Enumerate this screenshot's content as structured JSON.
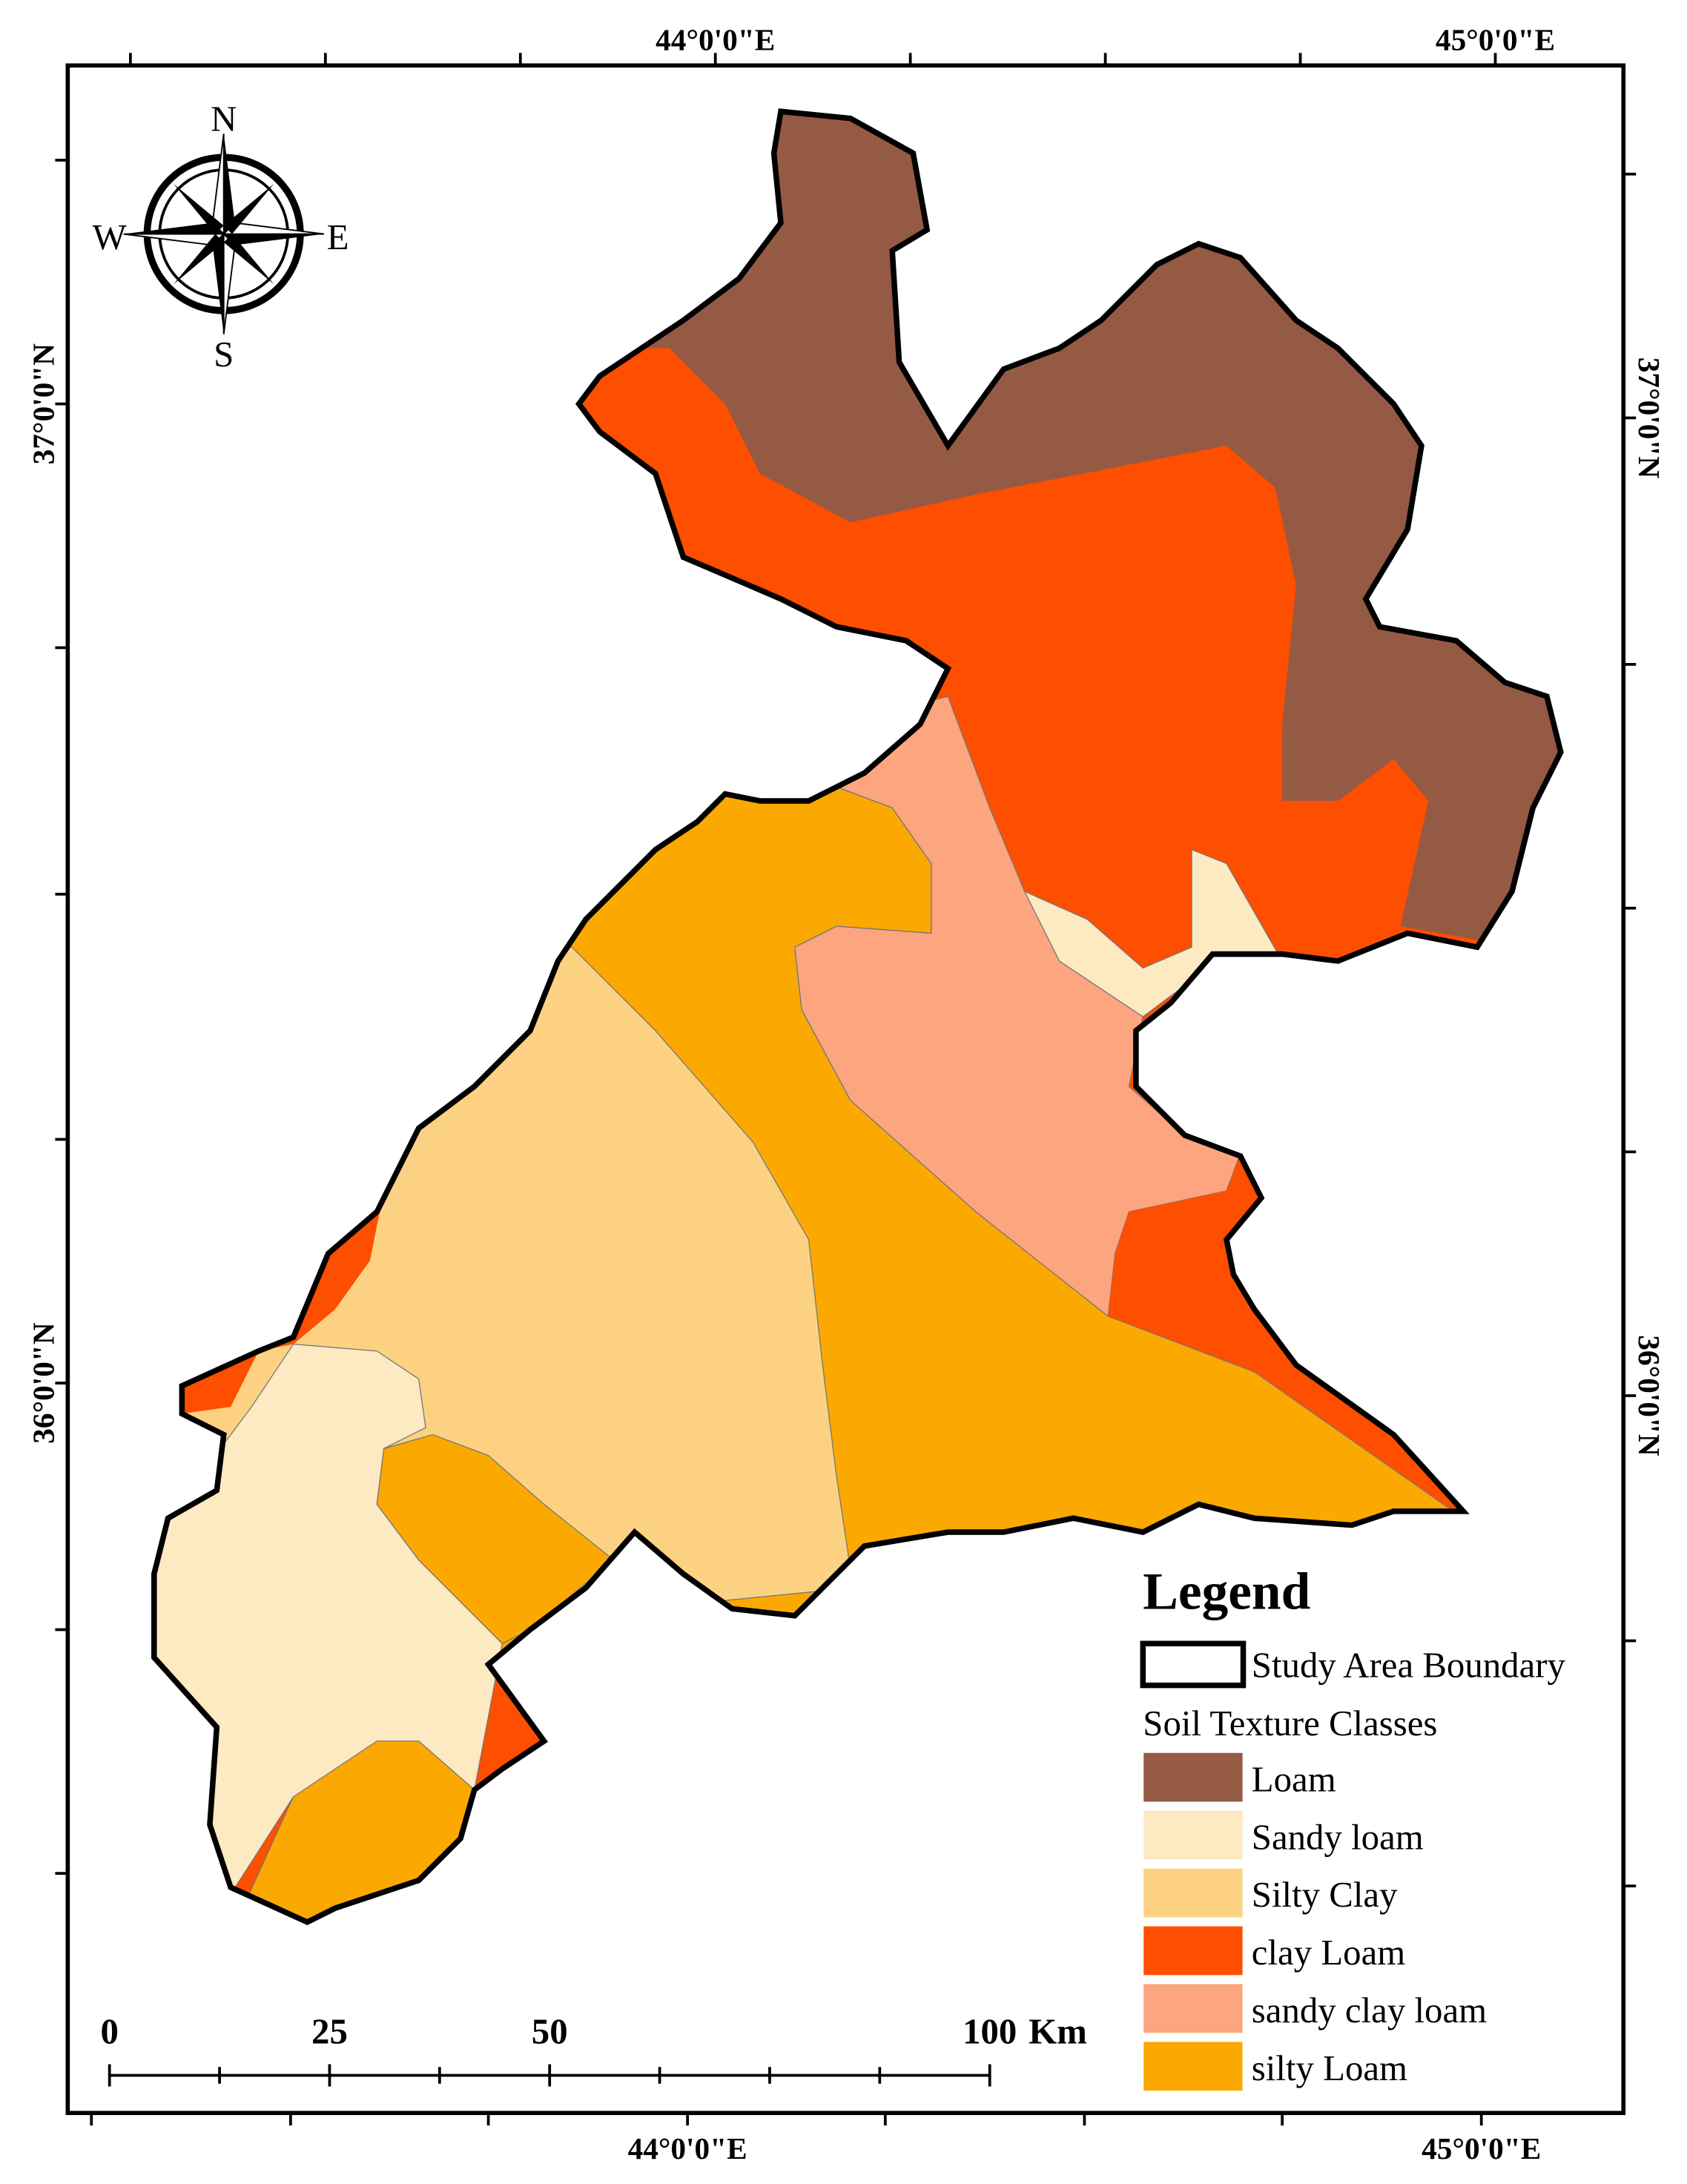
{
  "map": {
    "graticule": {
      "top": [
        "44°0'0\"E",
        "45°0'0\"E"
      ],
      "bottom": [
        "44°0'0\"E",
        "45°0'0\"E"
      ],
      "left": [
        "37°0'0\"N",
        "36°0'0\"N"
      ],
      "right": [
        "37°0'0\"N",
        "36°0'0\"N"
      ]
    },
    "compass": {
      "n": "N",
      "s": "S",
      "w": "W",
      "e": "E"
    },
    "legend": {
      "title": "Legend",
      "boundary": "Study Area Boundary",
      "subtitle": "Soil Texture Classes",
      "items": [
        {
          "label": "Loam",
          "color": "#955a44"
        },
        {
          "label": "Sandy loam",
          "color": "#fde9c2"
        },
        {
          "label": "Silty Clay",
          "color": "#fcd282"
        },
        {
          "label": "clay Loam",
          "color": "#fe4e00"
        },
        {
          "label": "sandy clay loam",
          "color": "#fca57f"
        },
        {
          "label": "silty Loam",
          "color": "#fba900"
        }
      ]
    },
    "scale_bar": {
      "labels": [
        0,
        25,
        50,
        100
      ],
      "unit": "Km"
    }
  }
}
